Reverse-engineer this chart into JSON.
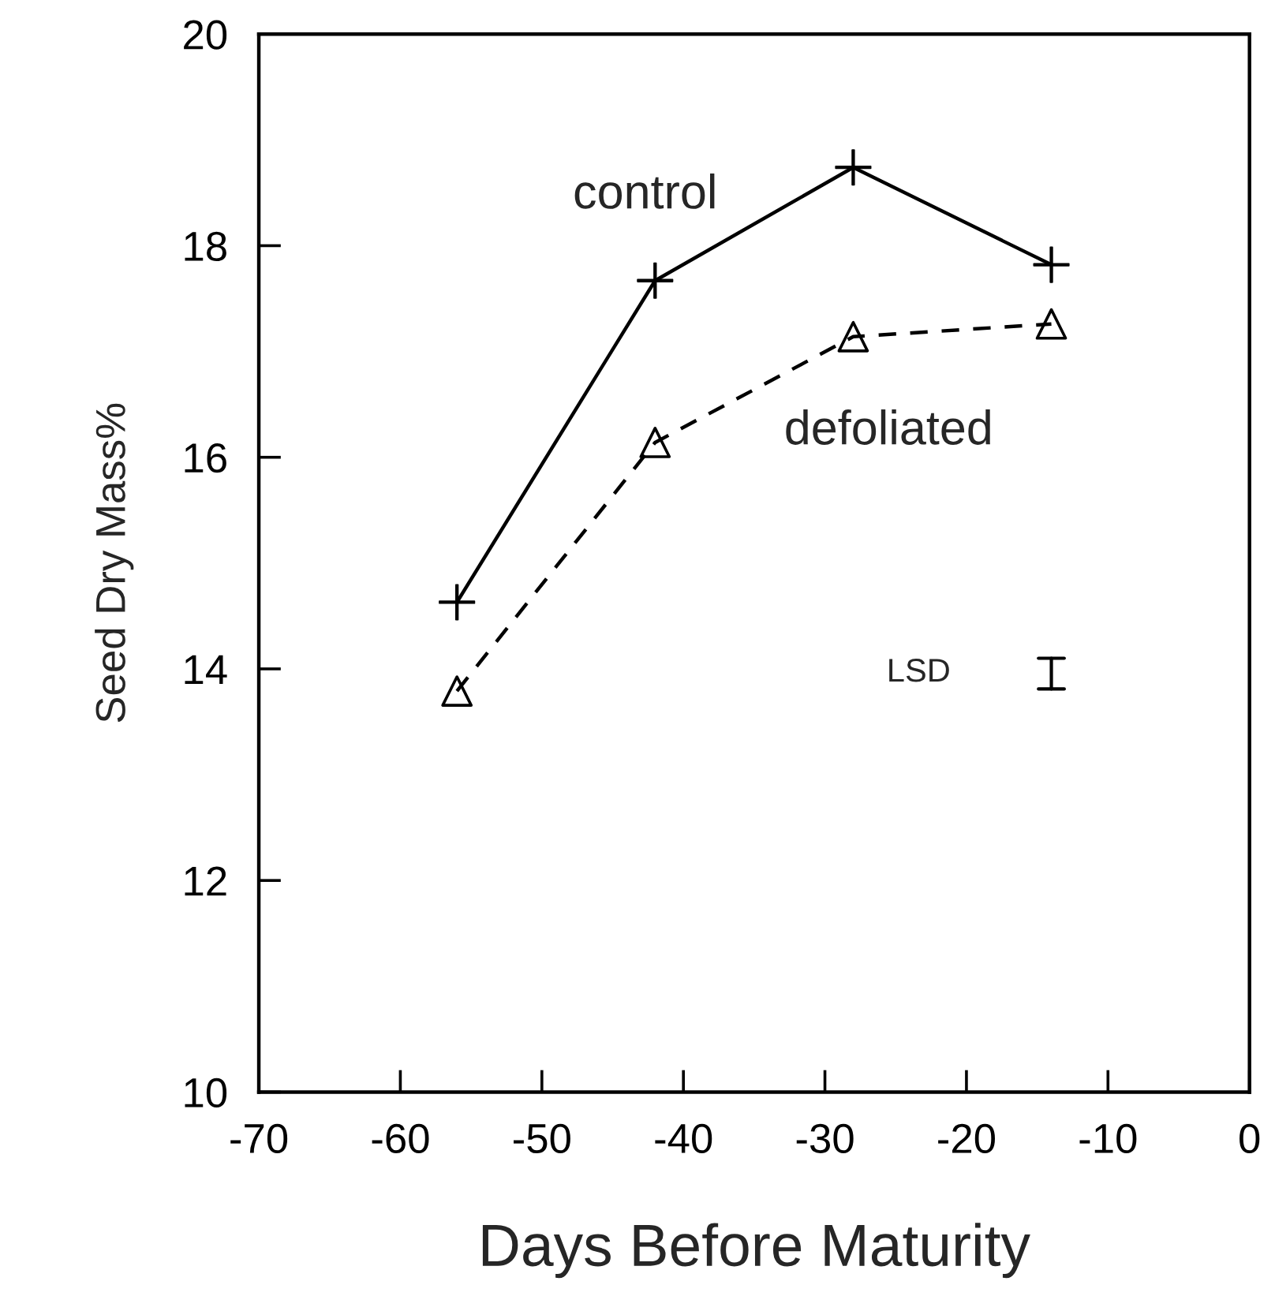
{
  "chart_data": {
    "type": "line",
    "xlabel": "Days Before Maturity",
    "ylabel": "Seed Dry Mass%",
    "xlim": [
      -70,
      0
    ],
    "xticks": [
      -70,
      -60,
      -50,
      -40,
      -30,
      -20,
      -10,
      0
    ],
    "ylim": [
      10,
      20
    ],
    "yticks": [
      10,
      12,
      14,
      16,
      18,
      20
    ],
    "grid": false,
    "legend": false,
    "series": [
      {
        "name": "control",
        "color": "#000000",
        "x": [
          -56,
          -42,
          -28,
          -14
        ],
        "values": [
          14.63,
          17.67,
          18.74,
          17.82
        ],
        "marker": "cross",
        "line_style": "solid"
      },
      {
        "name": "defoliated",
        "color": "#000000",
        "x": [
          -56,
          -42,
          -28,
          -14
        ],
        "values": [
          13.79,
          16.14,
          17.14,
          17.26
        ],
        "marker": "triangle",
        "line_style": "dashed"
      }
    ],
    "annotations": [
      "LSD"
    ]
  }
}
